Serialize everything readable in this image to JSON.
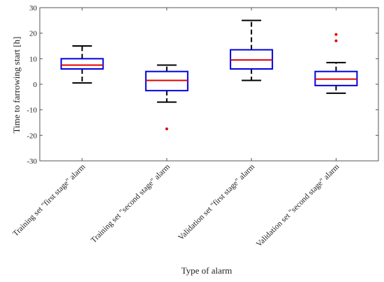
{
  "chart_data": {
    "type": "boxplot",
    "title": "",
    "xlabel": "Type of alarm",
    "ylabel": "Time to farrowing start [h]",
    "ylim": [
      -30,
      30
    ],
    "yticks": [
      -30,
      -20,
      -10,
      0,
      10,
      20,
      30
    ],
    "grid": false,
    "categories": [
      "Training set \"first stage\" alarm",
      "Training set \"second stage\" alarm",
      "Validation set \"first stage\" alarm",
      "Validation set \"second stage\" alarm"
    ],
    "boxes": [
      {
        "whisker_low": 0.5,
        "q1": 6,
        "median": 7.5,
        "q3": 10,
        "whisker_high": 15,
        "outliers": []
      },
      {
        "whisker_low": -7,
        "q1": -2.5,
        "median": 1.5,
        "q3": 5,
        "whisker_high": 7.5,
        "outliers": [
          -17.5
        ]
      },
      {
        "whisker_low": 1.5,
        "q1": 6,
        "median": 9.5,
        "q3": 13.5,
        "whisker_high": 25,
        "outliers": []
      },
      {
        "whisker_low": -3.5,
        "q1": -0.5,
        "median": 2,
        "q3": 5,
        "whisker_high": 8.5,
        "outliers": [
          17,
          19.5
        ]
      }
    ],
    "colors": {
      "box": "#0000e0",
      "median": "#e00000",
      "whisker": "#000000",
      "outlier": "#e00000",
      "frame": "#555555"
    }
  }
}
